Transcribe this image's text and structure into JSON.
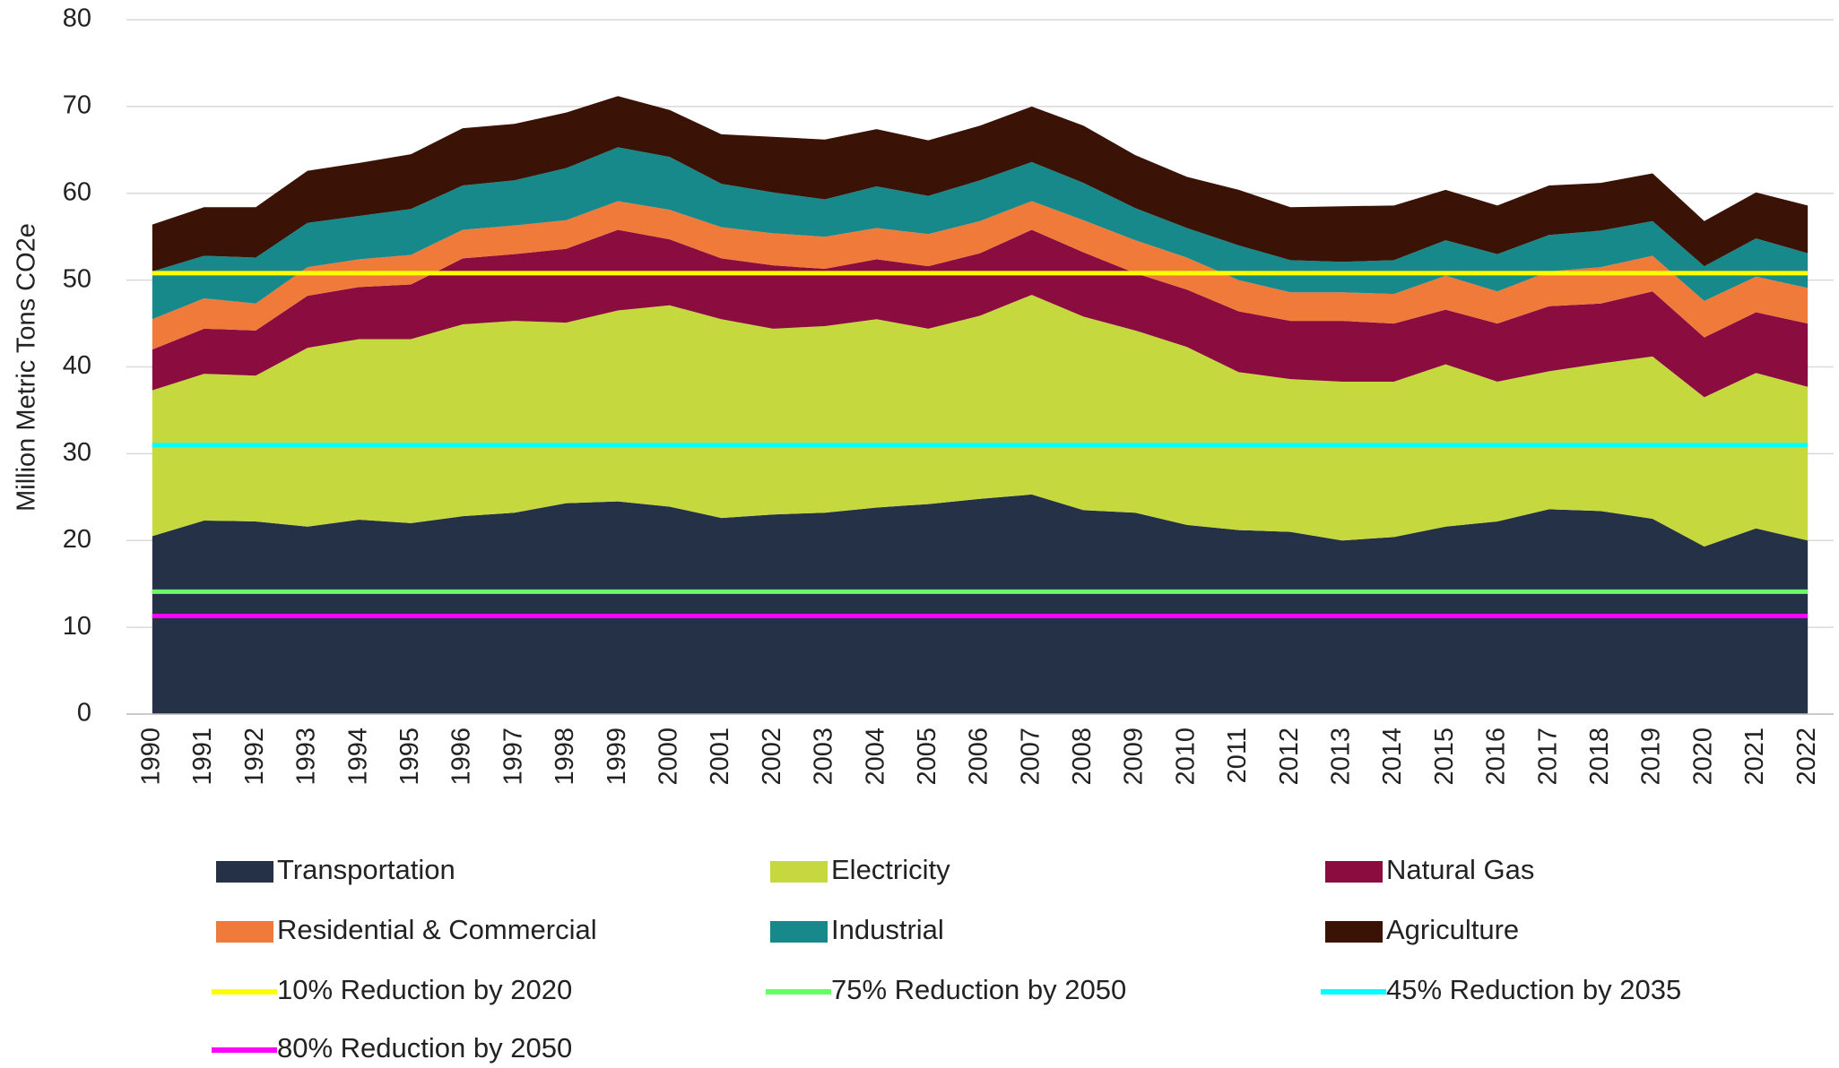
{
  "chart_data": {
    "type": "stacked_area",
    "y_label": "Million Metric Tons CO2e",
    "categories": [
      "1990",
      "1991",
      "1992",
      "1993",
      "1994",
      "1995",
      "1996",
      "1997",
      "1998",
      "1999",
      "2000",
      "2001",
      "2002",
      "2003",
      "2004",
      "2005",
      "2006",
      "2007",
      "2008",
      "2009",
      "2010",
      "2011",
      "2012",
      "2013",
      "2014",
      "2015",
      "2016",
      "2017",
      "2018",
      "2019",
      "2020",
      "2021",
      "2022"
    ],
    "series": [
      {
        "name": "Transportation",
        "color": "#243147",
        "values": [
          20.5,
          22.3,
          22.2,
          21.6,
          22.4,
          22.0,
          22.8,
          23.2,
          24.3,
          24.5,
          23.9,
          22.6,
          23.0,
          23.2,
          23.8,
          24.2,
          24.8,
          25.3,
          23.5,
          23.2,
          21.8,
          21.2,
          21.0,
          20.0,
          20.4,
          21.6,
          22.2,
          23.6,
          23.4,
          22.5,
          19.3,
          21.4,
          20.0
        ]
      },
      {
        "name": "Electricity",
        "color": "#c5d93f",
        "values": [
          16.8,
          16.9,
          16.8,
          20.6,
          20.8,
          21.2,
          22.1,
          22.1,
          20.8,
          22.0,
          23.2,
          22.9,
          21.4,
          21.5,
          21.7,
          20.2,
          21.1,
          23.0,
          22.3,
          21.0,
          20.5,
          18.2,
          17.6,
          18.3,
          17.9,
          18.7,
          16.1,
          15.9,
          17.0,
          18.7,
          17.2,
          17.9,
          17.7
        ]
      },
      {
        "name": "Natural Gas",
        "color": "#8b0d40",
        "values": [
          4.7,
          5.2,
          5.2,
          6.0,
          6.0,
          6.3,
          7.6,
          7.7,
          8.5,
          9.3,
          7.6,
          7.0,
          7.3,
          6.6,
          6.9,
          7.2,
          7.2,
          7.5,
          7.4,
          6.6,
          6.6,
          7.0,
          6.7,
          7.0,
          6.7,
          6.3,
          6.7,
          7.5,
          6.9,
          7.5,
          6.9,
          7.0,
          7.3
        ]
      },
      {
        "name": "Residential & Commercial",
        "color": "#f07a3a",
        "values": [
          3.5,
          3.5,
          3.1,
          3.3,
          3.2,
          3.4,
          3.3,
          3.3,
          3.3,
          3.3,
          3.4,
          3.6,
          3.7,
          3.7,
          3.6,
          3.7,
          3.7,
          3.3,
          3.7,
          3.8,
          3.7,
          3.6,
          3.3,
          3.3,
          3.4,
          3.9,
          3.7,
          4.0,
          4.2,
          4.1,
          4.2,
          4.1,
          4.1
        ]
      },
      {
        "name": "Industrial",
        "color": "#17898a",
        "values": [
          5.5,
          4.9,
          5.3,
          5.1,
          5.0,
          5.3,
          5.1,
          5.2,
          6.0,
          6.2,
          6.1,
          5.0,
          4.7,
          4.3,
          4.8,
          4.4,
          4.7,
          4.5,
          4.3,
          3.7,
          3.4,
          4.0,
          3.7,
          3.5,
          3.9,
          4.1,
          4.3,
          4.2,
          4.2,
          4.0,
          4.0,
          4.4,
          4.0
        ]
      },
      {
        "name": "Agriculture",
        "color": "#3b1206",
        "values": [
          5.4,
          5.6,
          5.8,
          6.0,
          6.1,
          6.3,
          6.6,
          6.5,
          6.4,
          5.9,
          5.4,
          5.7,
          6.4,
          6.9,
          6.6,
          6.4,
          6.3,
          6.4,
          6.6,
          6.1,
          5.9,
          6.4,
          6.1,
          6.4,
          6.3,
          5.8,
          5.6,
          5.7,
          5.5,
          5.5,
          5.2,
          5.3,
          5.5
        ]
      }
    ],
    "reference_lines": [
      {
        "name": "10% Reduction by 2020",
        "color": "#ffff00",
        "value": 50.8
      },
      {
        "name": "75% Reduction by 2050",
        "color": "#66ff66",
        "value": 14.1
      },
      {
        "name": "45% Reduction by 2035",
        "color": "#00ffff",
        "value": 31.0
      },
      {
        "name": "80% Reduction by 2050",
        "color": "#ff00ff",
        "value": 11.3
      }
    ],
    "ylim": [
      0,
      80
    ],
    "yticks": [
      0,
      10,
      20,
      30,
      40,
      50,
      60,
      70,
      80
    ],
    "grid": true
  }
}
